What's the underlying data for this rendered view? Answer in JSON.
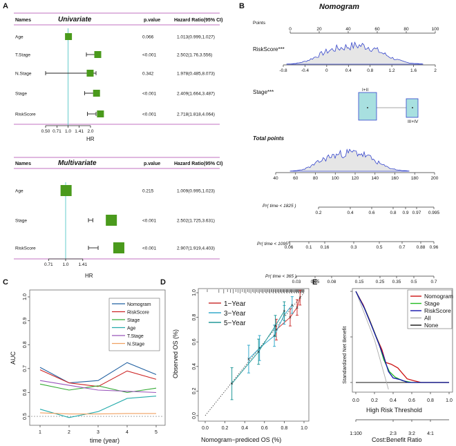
{
  "panel_labels": [
    "A",
    "B",
    "C",
    "D",
    "E"
  ],
  "colors": {
    "forest_box": "#4a9a1c",
    "purple_line": "#c080c0",
    "ref_line": "#66cccc",
    "density_line": "#3344cc",
    "density_fill": "#e6e6e6",
    "stage_box": "#a8e0e0"
  },
  "chart_data": [
    {
      "type": "forest",
      "title": "Univariate",
      "headers": {
        "names": "Names",
        "pvalue": "p.value",
        "hr": "Hazard Ratio(95% CI)"
      },
      "rows": [
        {
          "name": "Age",
          "pvalue": "0.066",
          "hr_text": "1.013(0.999,1.027)",
          "hr": 1.013,
          "lo": 0.999,
          "hi": 1.027
        },
        {
          "name": "T.Stage",
          "pvalue": "<0.001",
          "hr_text": "2.502(1.76,3.556)",
          "hr": 2.502,
          "lo": 1.76,
          "hi": 3.556
        },
        {
          "name": "N.Stage",
          "pvalue": "0.342",
          "hr_text": "1.978(0.485,8.073)",
          "hr": 1.978,
          "lo": 0.485,
          "hi": 8.073
        },
        {
          "name": "Stage",
          "pvalue": "<0.001",
          "hr_text": "2.409(1.664,3.487)",
          "hr": 2.409,
          "lo": 1.664,
          "hi": 3.487
        },
        {
          "name": "RiskScore",
          "pvalue": "<0.001",
          "hr_text": "2.718(1.818,4.064)",
          "hr": 2.718,
          "lo": 1.818,
          "hi": 4.064
        }
      ],
      "xlabel": "HR",
      "ticks": [
        "0.50",
        "0.71",
        "1.0",
        "1.41",
        "2.0"
      ]
    },
    {
      "type": "forest",
      "title": "Multivariate",
      "headers": {
        "names": "Names",
        "pvalue": "p.value",
        "hr": "Hazard Ratio(95% CI)"
      },
      "rows": [
        {
          "name": "Age",
          "pvalue": "0.215",
          "hr_text": "1.009(0.995,1.023)",
          "hr": 1.009,
          "lo": 0.995,
          "hi": 1.023
        },
        {
          "name": "Stage",
          "pvalue": "<0.001",
          "hr_text": "2.502(1.725,3.631)",
          "hr": 2.502,
          "lo": 1.725,
          "hi": 3.631
        },
        {
          "name": "RiskScore",
          "pvalue": "<0.001",
          "hr_text": "2.907(1.919,4.403)",
          "hr": 2.907,
          "lo": 1.919,
          "hi": 4.403
        }
      ],
      "xlabel": "HR",
      "ticks": [
        "0.71",
        "1.0",
        "1.41"
      ]
    },
    {
      "type": "nomogram",
      "title": "Nomogram",
      "points": {
        "label": "Points",
        "ticks": [
          "0",
          "20",
          "40",
          "60",
          "80",
          "100"
        ]
      },
      "riskscore": {
        "label": "RiskScore***",
        "ticks": [
          "-0.8",
          "-0.4",
          "0",
          "0.4",
          "0.8",
          "1.2",
          "1.6",
          "2"
        ]
      },
      "stage": {
        "label": "Stage***",
        "levels": [
          "I+II",
          "III+IV"
        ]
      },
      "total_points": {
        "label": "Total points",
        "ticks": [
          "40",
          "60",
          "80",
          "100",
          "120",
          "140",
          "160",
          "180",
          "200"
        ]
      },
      "pr_1825": {
        "label": "Pr( time < 1825 )",
        "ticks": [
          "0.2",
          "0.4",
          "0.6",
          "0.8",
          "0.9",
          "0.97",
          "0.995"
        ]
      },
      "pr_1095": {
        "label": "Pr( time < 1095 )",
        "ticks": [
          "0.06",
          "0.1",
          "0.16",
          "0.3",
          "0.5",
          "0.7",
          "0.88",
          "0.96"
        ]
      },
      "pr_365": {
        "label": "Pr( time < 365 )",
        "ticks": [
          "0.03",
          "0.05",
          "0.08",
          "0.15",
          "0.25",
          "0.35",
          "0.5",
          "0.7"
        ]
      }
    },
    {
      "type": "line",
      "xlabel": "time (year)",
      "ylabel": "AUC",
      "x": [
        1,
        2,
        3,
        4,
        5
      ],
      "xlim": [
        1,
        5
      ],
      "ylim": [
        0.48,
        1.0
      ],
      "yticks": [
        "0.5",
        "0.6",
        "0.7",
        "0.8",
        "0.9",
        "1.0"
      ],
      "xticks": [
        "1",
        "2",
        "3",
        "4",
        "5"
      ],
      "series": [
        {
          "name": "Nomogram",
          "color": "#1f5fa0",
          "values": [
            0.705,
            0.64,
            0.65,
            0.725,
            0.675
          ]
        },
        {
          "name": "RiskScore",
          "color": "#cc2222",
          "values": [
            0.695,
            0.64,
            0.625,
            0.69,
            0.655
          ]
        },
        {
          "name": "Stage",
          "color": "#33aa33",
          "values": [
            0.635,
            0.61,
            0.628,
            0.6,
            0.618
          ]
        },
        {
          "name": "Age",
          "color": "#22aaaa",
          "values": [
            0.53,
            0.495,
            0.52,
            0.575,
            0.585
          ]
        },
        {
          "name": "T.Stage",
          "color": "#9955bb",
          "values": [
            0.65,
            0.63,
            0.61,
            0.605,
            0.6
          ]
        },
        {
          "name": "N.Stage",
          "color": "#f0a060",
          "values": [
            0.515,
            0.51,
            0.51,
            0.512,
            0.512
          ]
        }
      ],
      "reference": 0.5
    },
    {
      "type": "calibration",
      "xlabel": "Nomogram−prediced OS (%)",
      "ylabel": "Observed OS (%)",
      "xlim": [
        0,
        1
      ],
      "ylim": [
        0,
        1
      ],
      "ticks": [
        "0.0",
        "0.2",
        "0.4",
        "0.6",
        "0.8",
        "1.0"
      ],
      "series": [
        {
          "name": "1−Year",
          "color": "#cc3333",
          "x": [
            0.72,
            0.86,
            0.93,
            0.96
          ],
          "y": [
            0.7,
            0.8,
            0.88,
            0.96
          ]
        },
        {
          "name": "3−Year",
          "color": "#33aacc",
          "x": [
            0.44,
            0.55,
            0.7,
            0.8,
            0.88
          ],
          "y": [
            0.46,
            0.55,
            0.65,
            0.82,
            0.9
          ]
        },
        {
          "name": "5−Year",
          "color": "#229999",
          "x": [
            0.27,
            0.54,
            0.71,
            0.8
          ],
          "y": [
            0.26,
            0.52,
            0.73,
            0.85
          ]
        }
      ]
    },
    {
      "type": "dca",
      "xlabel": "High Risk Threshold",
      "ylabel": "Standardized Net Benefit",
      "xticks": [
        "0.0",
        "0.2",
        "0.4",
        "0.6",
        "0.8",
        "1.0"
      ],
      "ratio_label": "Cost:Benefit Ratio",
      "ratio_ticks": [
        "1:100",
        "2:3",
        "3:2",
        "4:1"
      ],
      "series": [
        {
          "name": "Nomogram",
          "color": "#cc1111"
        },
        {
          "name": "Stage",
          "color": "#22bb22"
        },
        {
          "name": "RiskScore",
          "color": "#1111aa"
        },
        {
          "name": "All",
          "color": "#aaaaaa"
        },
        {
          "name": "None",
          "color": "#111111"
        }
      ]
    }
  ]
}
